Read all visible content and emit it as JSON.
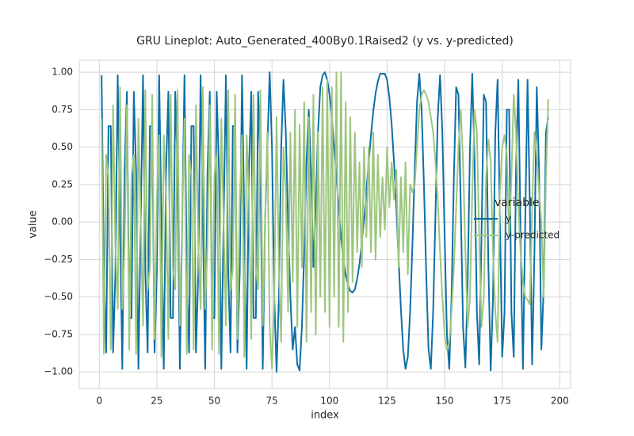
{
  "chart_data": {
    "type": "line",
    "title": "GRU Lineplot: Auto_Generated_400By0.1Raised2 (y vs. y-predicted)",
    "xlabel": "index",
    "ylabel": "value",
    "legend_title": "variable",
    "legend_loc": "right",
    "grid": true,
    "xlim": [
      -8.7,
      204.7
    ],
    "ylim": [
      -1.11,
      1.08
    ],
    "xticks": [
      0,
      25,
      50,
      75,
      100,
      125,
      150,
      175,
      200
    ],
    "yticks": [
      {
        "value": -1,
        "label": "−1.00"
      },
      {
        "value": -0.75,
        "label": "−0.75"
      },
      {
        "value": -0.5,
        "label": "−0.50"
      },
      {
        "value": -0.25,
        "label": "−0.25"
      },
      {
        "value": 0,
        "label": "0.00"
      },
      {
        "value": 0.25,
        "label": "0.25"
      },
      {
        "value": 0.5,
        "label": "0.50"
      },
      {
        "value": 0.75,
        "label": "0.75"
      },
      {
        "value": 1,
        "label": "1.00"
      }
    ],
    "x": [
      1,
      2,
      3,
      4,
      5,
      6,
      7,
      8,
      9,
      10,
      11,
      12,
      13,
      14,
      15,
      16,
      17,
      18,
      19,
      20,
      21,
      22,
      23,
      24,
      25,
      26,
      27,
      28,
      29,
      30,
      31,
      32,
      33,
      34,
      35,
      36,
      37,
      38,
      39,
      40,
      41,
      42,
      43,
      44,
      45,
      46,
      47,
      48,
      49,
      50,
      51,
      52,
      53,
      54,
      55,
      56,
      57,
      58,
      59,
      60,
      61,
      62,
      63,
      64,
      65,
      66,
      67,
      68,
      69,
      70,
      71,
      72,
      73,
      74,
      75,
      76,
      77,
      78,
      79,
      80,
      81,
      82,
      83,
      84,
      85,
      86,
      87,
      88,
      89,
      90,
      91,
      92,
      93,
      94,
      95,
      96,
      97,
      98,
      99,
      100,
      101,
      102,
      103,
      104,
      105,
      106,
      107,
      108,
      109,
      110,
      111,
      112,
      113,
      114,
      115,
      116,
      117,
      118,
      119,
      120,
      121,
      122,
      123,
      124,
      125,
      126,
      127,
      128,
      129,
      130,
      131,
      132,
      133,
      134,
      135,
      136,
      137,
      138,
      139,
      140,
      141,
      142,
      143,
      144,
      145,
      146,
      147,
      148,
      149,
      150,
      151,
      152,
      153,
      154,
      155,
      156,
      157,
      158,
      159,
      160,
      161,
      162,
      163,
      164,
      165,
      166,
      167,
      168,
      169,
      170,
      171,
      172,
      173,
      174,
      175,
      176,
      177,
      178,
      179,
      180,
      181,
      182,
      183,
      184,
      185,
      186,
      187,
      188,
      189,
      190,
      191,
      192,
      193,
      194,
      195
    ],
    "series": [
      {
        "name": "y",
        "color": "#0e6fa6",
        "values": [
          0.98,
          -0.34,
          -0.87,
          0.64,
          0.64,
          -0.87,
          -0.34,
          0.98,
          0,
          -0.98,
          0.34,
          0.87,
          -0.64,
          -0.64,
          0.87,
          0.34,
          -0.98,
          0,
          0.98,
          -0.34,
          -0.87,
          0.64,
          0.64,
          -0.87,
          -0.34,
          0.98,
          0,
          -0.98,
          0.34,
          0.87,
          -0.64,
          -0.64,
          0.87,
          0.34,
          -0.98,
          0,
          0.98,
          -0.34,
          -0.87,
          0.64,
          0.64,
          -0.87,
          -0.34,
          0.98,
          0,
          -0.98,
          0.34,
          0.87,
          -0.64,
          -0.64,
          0.87,
          0.34,
          -0.98,
          0,
          0.98,
          -0.34,
          -0.87,
          0.64,
          0.64,
          -0.87,
          -0.34,
          0.98,
          0,
          -0.98,
          0.34,
          0.87,
          -0.64,
          -0.64,
          0.87,
          0.34,
          -0.98,
          0,
          0.5,
          1,
          0.5,
          -0.5,
          -1,
          -0.5,
          0.5,
          0.95,
          0.6,
          0,
          -0.5,
          -0.85,
          -0.7,
          -0.95,
          -0.99,
          -0.7,
          -0.2,
          0.4,
          0.75,
          0.3,
          -0.3,
          0.1,
          0.6,
          0.9,
          0.98,
          1,
          0.95,
          0.85,
          0.7,
          0.5,
          0.3,
          0.1,
          -0.1,
          -0.25,
          -0.35,
          -0.42,
          -0.46,
          -0.47,
          -0.45,
          -0.38,
          -0.28,
          -0.14,
          0.02,
          0.2,
          0.4,
          0.58,
          0.74,
          0.86,
          0.94,
          0.99,
          0.99,
          0.99,
          0.95,
          0.83,
          0.65,
          0.4,
          0.1,
          -0.25,
          -0.58,
          -0.85,
          -0.98,
          -0.9,
          -0.6,
          -0.15,
          0.35,
          0.8,
          0.99,
          0.75,
          0.25,
          -0.35,
          -0.85,
          -0.98,
          -0.6,
          0.05,
          0.7,
          0.98,
          0.6,
          -0.1,
          -0.75,
          -0.98,
          -0.5,
          0.3,
          0.9,
          0.85,
          0.1,
          -0.7,
          -0.97,
          -0.4,
          0.5,
          0.99,
          0.4,
          -0.6,
          -0.95,
          -0.1,
          0.85,
          0.8,
          -0.3,
          -0.99,
          -0.5,
          0.6,
          0.95,
          0,
          -0.9,
          -0.6,
          0.75,
          0.75,
          -0.6,
          -0.9,
          0.35,
          0.95,
          -0.1,
          -0.98,
          0,
          0.95,
          0.1,
          -0.95,
          -0.2,
          0.9,
          0.35,
          -0.85,
          -0.45,
          0.6,
          0.7
        ]
      },
      {
        "name": "y-predicted",
        "color": "#9dc67f",
        "values": [
          0.69,
          -0.88,
          0.45,
          0.31,
          -0.85,
          0.78,
          -0.15,
          -0.58,
          0.9,
          -0.58,
          -0.15,
          0.78,
          -0.85,
          0.31,
          0.45,
          -0.88,
          0.69,
          0,
          -0.69,
          0.88,
          -0.45,
          -0.31,
          0.85,
          -0.78,
          0.15,
          0.58,
          -0.9,
          0.58,
          0.15,
          -0.78,
          0.85,
          -0.31,
          -0.45,
          0.88,
          -0.69,
          0,
          0.69,
          -0.88,
          0.45,
          0.31,
          -0.85,
          0.78,
          -0.15,
          -0.58,
          0.9,
          -0.58,
          -0.15,
          0.78,
          -0.85,
          0.31,
          0.45,
          -0.88,
          0.69,
          0,
          -0.69,
          0.88,
          -0.45,
          -0.31,
          0.85,
          -0.78,
          0.15,
          0.58,
          -0.9,
          0.58,
          0.15,
          -0.78,
          0.85,
          -0.31,
          -0.45,
          0.88,
          -0.69,
          0,
          0.6,
          -0.7,
          -0.98,
          -0.5,
          0.7,
          -0.3,
          -0.8,
          0.5,
          0.2,
          -0.6,
          0.6,
          -0.4,
          0.75,
          -0.7,
          0.65,
          -0.3,
          0.8,
          -0.8,
          0.7,
          -0.6,
          0.85,
          -0.75,
          0.6,
          -0.5,
          0.9,
          -0.6,
          0.95,
          -0.7,
          0.9,
          -0.5,
          1.0,
          -0.7,
          1.0,
          -0.8,
          0.8,
          -0.6,
          0.7,
          -0.4,
          0.6,
          -0.2,
          0.4,
          -0.3,
          0.5,
          -0.1,
          0.5,
          -0.2,
          0.6,
          -0.25,
          0.45,
          -0.1,
          0.3,
          -0.05,
          0.5,
          0.1,
          0.4,
          0.15,
          0.35,
          -0.3,
          0.3,
          -0.2,
          0.4,
          -0.35,
          0.25,
          0.2,
          0.25,
          0.5,
          0.75,
          0.85,
          0.88,
          0.85,
          0.8,
          0.7,
          0.6,
          0.4,
          0.15,
          -0.2,
          -0.5,
          -0.75,
          -0.85,
          -0.8,
          -0.6,
          -0.3,
          0.1,
          0.5,
          0.75,
          0.4,
          -0.2,
          -0.7,
          -0.5,
          0.2,
          0.75,
          0.6,
          -0.1,
          -0.7,
          -0.5,
          0.3,
          0.55,
          0.4,
          -0.2,
          -0.6,
          -0.8,
          0.2,
          0.5,
          0.58,
          0.45,
          -0.1,
          0.3,
          0.85,
          0.6,
          0.1,
          -0.2,
          -0.4,
          -0.5,
          -0.52,
          -0.55,
          0.1,
          0.6,
          0.45,
          0.2,
          0.0,
          -0.5,
          0.3,
          0.82
        ]
      }
    ]
  }
}
